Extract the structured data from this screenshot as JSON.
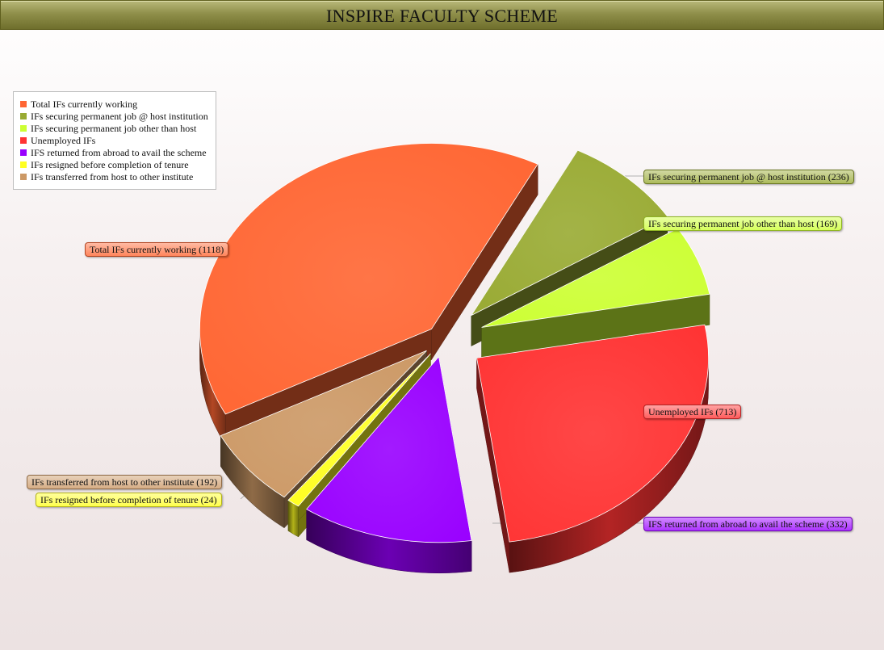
{
  "title": "INSPIRE FACULTY SCHEME",
  "chart_data": {
    "type": "pie",
    "title": "INSPIRE FACULTY SCHEME",
    "legend_position": "top-left",
    "slices": [
      {
        "label": "Total IFs currently working",
        "value": 1118,
        "callout": "Total IFs currently working (1118)",
        "color": "#ff6633"
      },
      {
        "label": "IFs securing permanent job @ host institution",
        "value": 236,
        "callout": "IFs securing permanent job @ host institution (236)",
        "color": "#99aa33"
      },
      {
        "label": "IFs securing permanent job other than host",
        "value": 169,
        "callout": "IFs securing permanent job other than host  (169)",
        "color": "#ccff33"
      },
      {
        "label": "Unemployed IFs",
        "value": 713,
        "callout": "Unemployed IFs (713)",
        "color": "#ff3333"
      },
      {
        "label": "IFS returned from abroad to avail the scheme",
        "value": 332,
        "callout": "IFS returned from abroad to avail the scheme (332)",
        "color": "#9900ff"
      },
      {
        "label": "IFs resigned before completion of tenure",
        "value": 24,
        "callout": "IFs resigned before completion of tenure  (24)",
        "color": "#ffff22"
      },
      {
        "label": "IFs transferred from host to other institute",
        "value": 192,
        "callout": "IFs transferred from host to other institute (192)",
        "color": "#cc9966"
      }
    ]
  }
}
